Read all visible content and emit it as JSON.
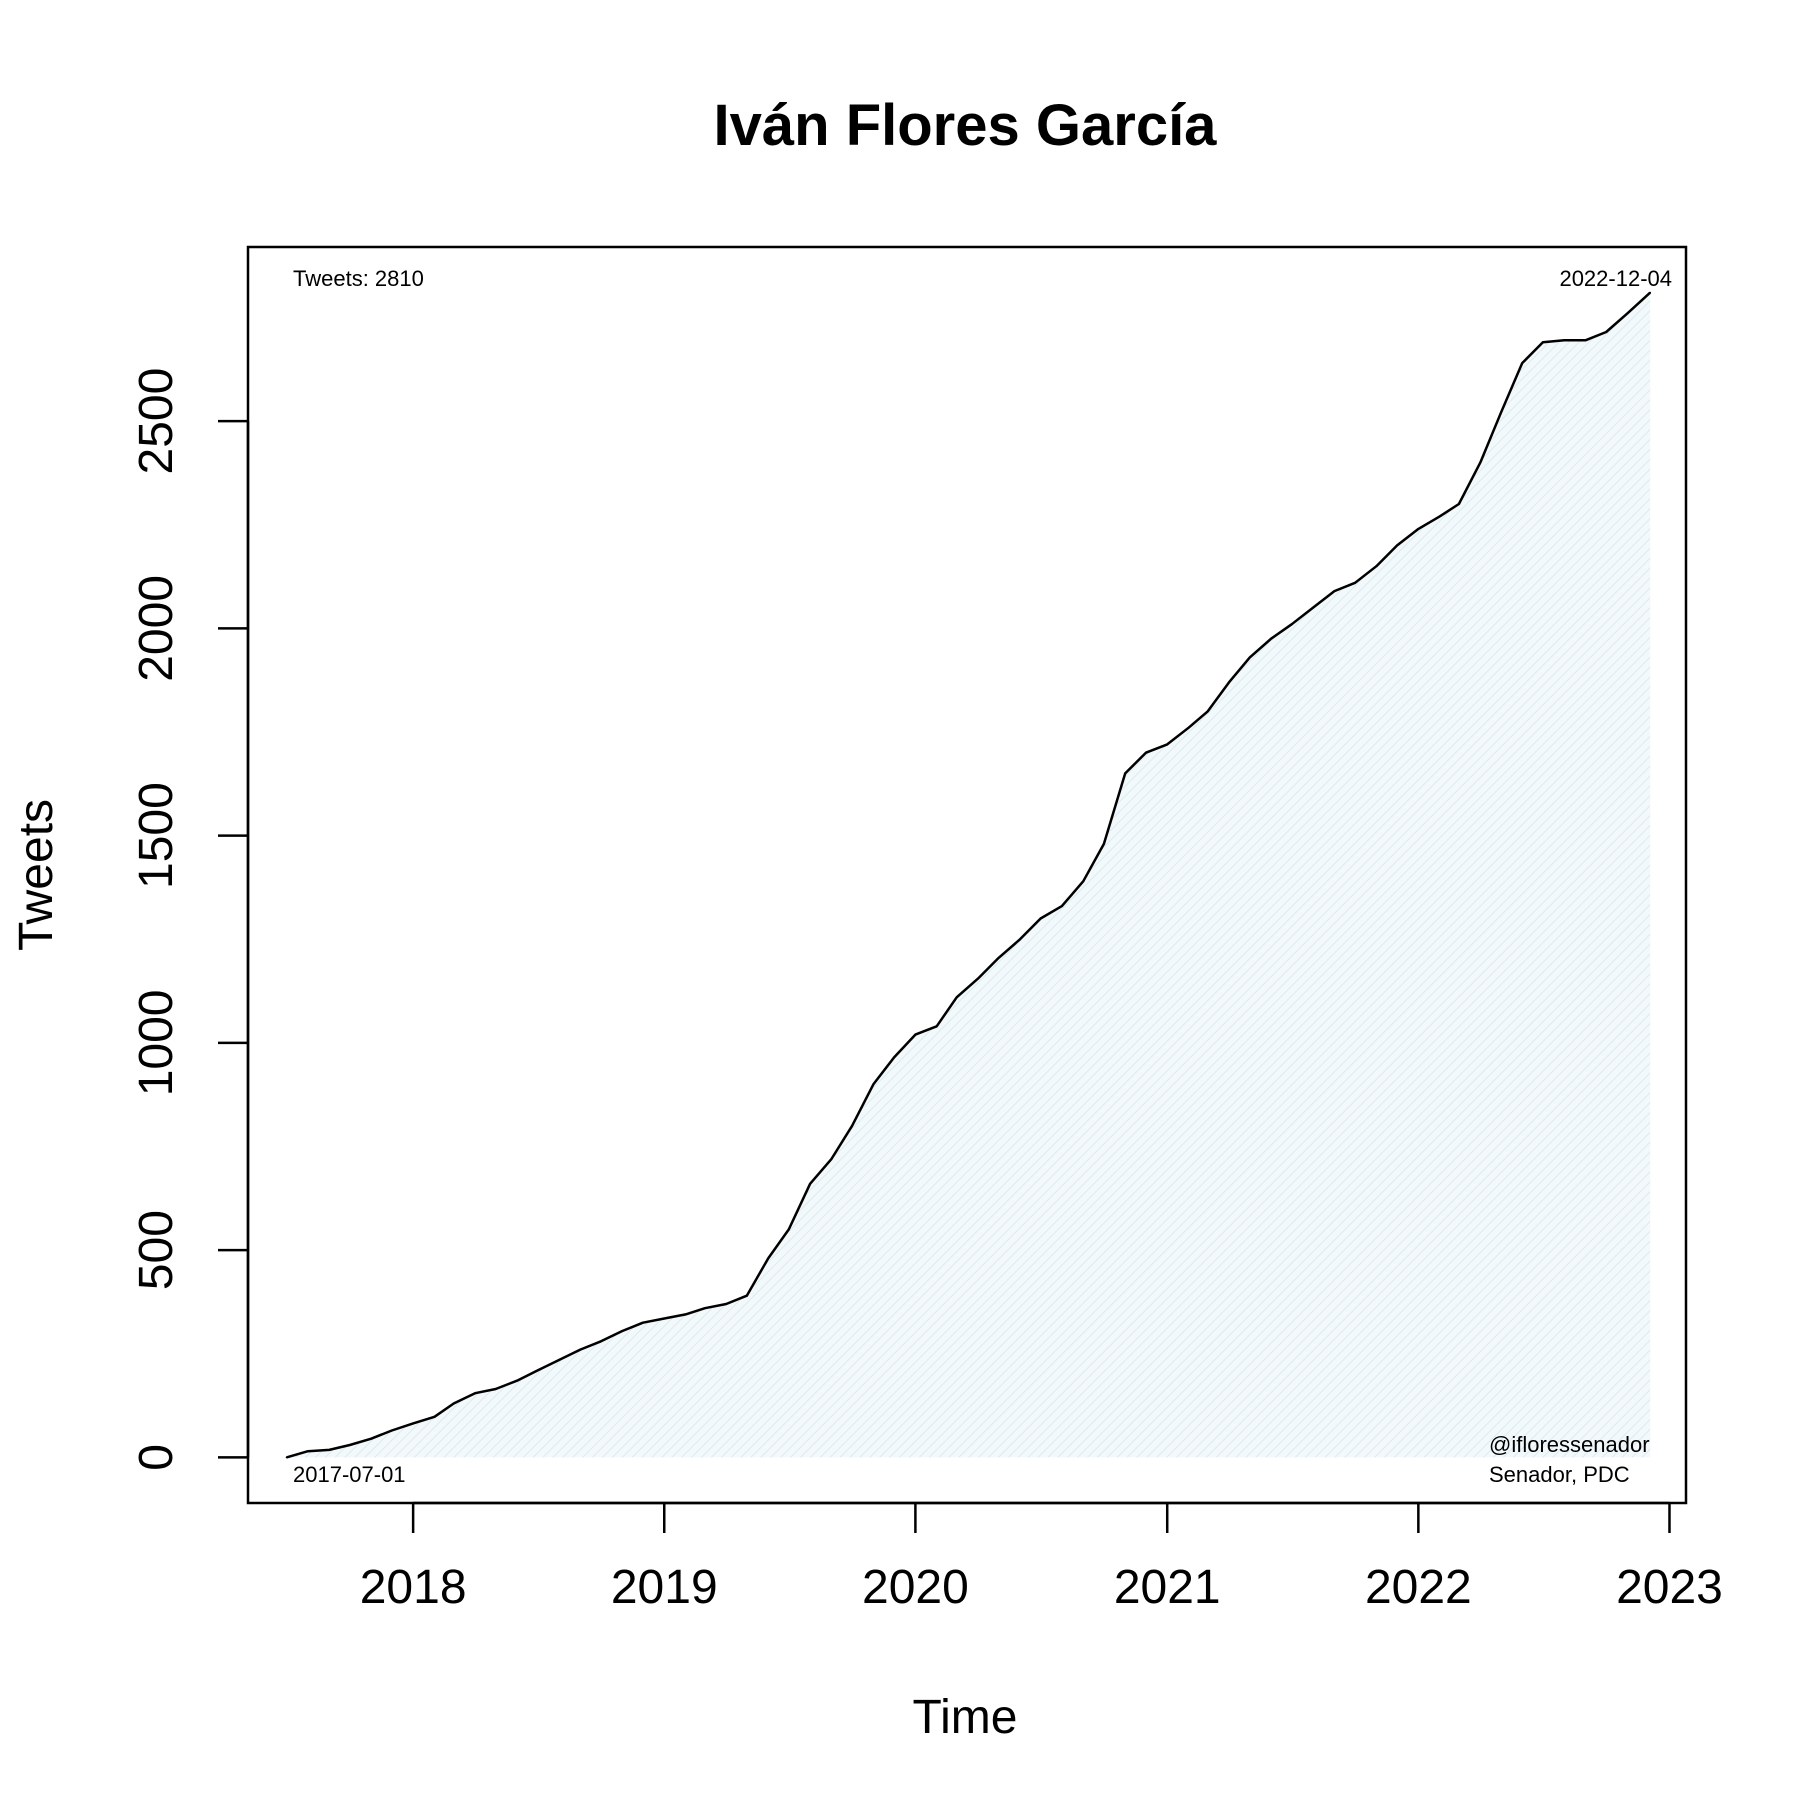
{
  "chart_data": {
    "type": "area",
    "title": "Iván Flores García",
    "xlabel": "Time",
    "ylabel": "Tweets",
    "xlim": [
      "2017-05-06",
      "2023-01-25"
    ],
    "ylim": [
      -110,
      2920
    ],
    "x_ticks": [
      "2018-01-01",
      "2019-01-01",
      "2020-01-01",
      "2021-01-01",
      "2022-01-01",
      "2023-01-01"
    ],
    "x_tick_labels": [
      "2018",
      "2019",
      "2020",
      "2021",
      "2022",
      "2023"
    ],
    "y_ticks": [
      0,
      500,
      1000,
      1500,
      2000,
      2500
    ],
    "y_tick_labels": [
      "0",
      "500",
      "1000",
      "1500",
      "2000",
      "2500"
    ],
    "grid": false,
    "fill_color": "#eaf3f7",
    "line_color": "#000000",
    "annotations": {
      "top_left": "Tweets: 2810",
      "top_right": "2022-12-04",
      "bottom_left": "2017-07-01",
      "bottom_right_line1": "@ifloressenador",
      "bottom_right_line2": "Senador, PDC"
    },
    "series": [
      {
        "x": [
          "2017-07-01",
          "2017-08-01",
          "2017-09-01",
          "2017-10-01",
          "2017-11-01",
          "2017-12-01",
          "2018-01-01",
          "2018-02-01",
          "2018-03-01",
          "2018-04-01",
          "2018-05-01",
          "2018-06-01",
          "2018-07-01",
          "2018-08-01",
          "2018-09-01",
          "2018-10-01",
          "2018-11-01",
          "2018-12-01",
          "2019-01-01",
          "2019-02-01",
          "2019-03-01",
          "2019-04-01",
          "2019-05-01",
          "2019-06-01",
          "2019-07-01",
          "2019-08-01",
          "2019-09-01",
          "2019-10-01",
          "2019-11-01",
          "2019-12-01",
          "2020-01-01",
          "2020-02-01",
          "2020-03-01",
          "2020-04-01",
          "2020-05-01",
          "2020-06-01",
          "2020-07-01",
          "2020-08-01",
          "2020-09-01",
          "2020-10-01",
          "2020-11-01",
          "2020-12-01",
          "2021-01-01",
          "2021-02-01",
          "2021-03-01",
          "2021-04-01",
          "2021-05-01",
          "2021-06-01",
          "2021-07-01",
          "2021-08-01",
          "2021-09-01",
          "2021-10-01",
          "2021-11-01",
          "2021-12-01",
          "2022-01-01",
          "2022-02-01",
          "2022-03-01",
          "2022-04-01",
          "2022-05-01",
          "2022-06-01",
          "2022-07-01",
          "2022-08-01",
          "2022-09-01",
          "2022-10-01",
          "2022-11-01",
          "2022-12-04"
        ],
        "values": [
          0,
          15,
          18,
          30,
          45,
          65,
          82,
          98,
          130,
          155,
          165,
          185,
          210,
          235,
          260,
          280,
          305,
          325,
          335,
          345,
          360,
          370,
          390,
          480,
          550,
          660,
          720,
          800,
          900,
          965,
          1020,
          1040,
          1110,
          1155,
          1205,
          1250,
          1300,
          1330,
          1390,
          1480,
          1650,
          1700,
          1720,
          1760,
          1800,
          1870,
          1930,
          1975,
          2010,
          2050,
          2090,
          2110,
          2150,
          2200,
          2240,
          2270,
          2300,
          2400,
          2520,
          2640,
          2690,
          2695,
          2695,
          2715,
          2760,
          2810
        ]
      }
    ]
  }
}
